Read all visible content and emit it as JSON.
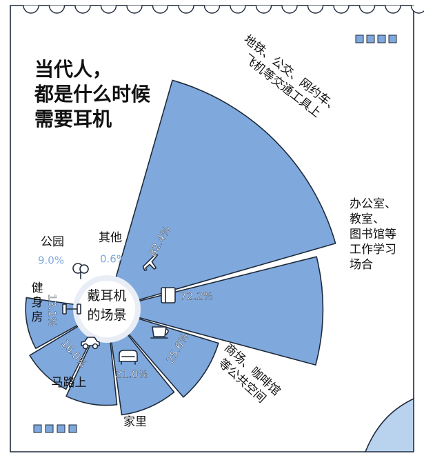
{
  "title_lines": [
    "当代人，",
    "都是什么时候",
    "需要耳机"
  ],
  "center_label_lines": [
    "戴耳机",
    "的场景"
  ],
  "colors": {
    "paper": "#ffffff",
    "outline": "#1e2a3a",
    "slice_fill": "#7fa8dd",
    "value_on_dark": "#ffffff",
    "value_light": "#7fa8dd",
    "hub_ring": "#e9eef6",
    "hub_fill": "#ffffff",
    "corner_fill": "#b9d3ef"
  },
  "chart_data": {
    "type": "pie",
    "title": "当代人，都是什么时候需要耳机",
    "center_label": "戴耳机的场景",
    "unit": "%",
    "categories": [
      {
        "label_lines": [
          "地铁、公交、网约车、",
          "飞机等交通工具上"
        ],
        "value": 82.4,
        "value_text": "82.4%",
        "icon": "airplane-icon"
      },
      {
        "label_lines": [
          "办公室、",
          "教室、",
          "图书馆等",
          "工作学习",
          "场合"
        ],
        "value": 72.2,
        "value_text": "72.2%",
        "icon": "book-icon"
      },
      {
        "label_lines": [
          "商场、咖啡馆",
          "等公共空间"
        ],
        "value": 25.6,
        "value_text": "25.6%",
        "icon": "coffee-cup-icon"
      },
      {
        "label_lines": [
          "家里"
        ],
        "value": 21.0,
        "value_text": "21.0%",
        "icon": "sofa-icon"
      },
      {
        "label_lines": [
          "马路上"
        ],
        "value": 16.0,
        "value_text": "16.0%",
        "icon": "car-icon"
      },
      {
        "label_lines": [
          "健",
          "身",
          "房"
        ],
        "value": 13.1,
        "value_text": "13.1%",
        "icon": "dumbbell-icon"
      },
      {
        "label_lines": [
          "公园"
        ],
        "value": 9.0,
        "value_text": "9.0%",
        "icon": "tree-icon"
      },
      {
        "label_lines": [
          "其他"
        ],
        "value": 0.6,
        "value_text": "0.6%",
        "icon": ""
      }
    ]
  }
}
